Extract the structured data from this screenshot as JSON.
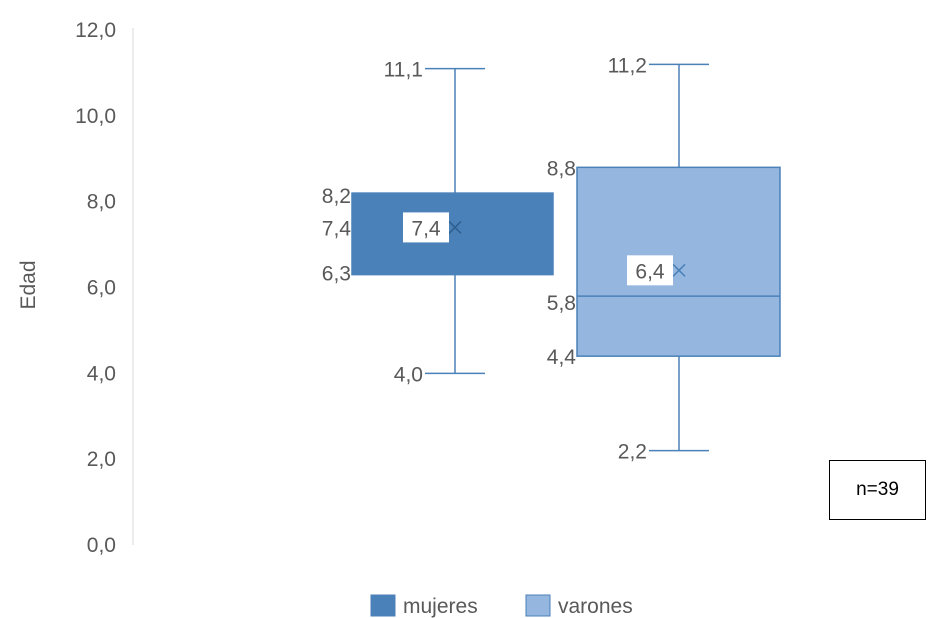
{
  "chart_data": {
    "type": "box",
    "ylabel": "Edad",
    "ylim": [
      0,
      12
    ],
    "yticks": [
      "0,0",
      "2,0",
      "4,0",
      "6,0",
      "8,0",
      "10,0",
      "12,0"
    ],
    "grid": false,
    "legend_position": "bottom",
    "series": [
      {
        "name": "mujeres",
        "color": "#4a81b8",
        "min": 4.0,
        "q1": 6.3,
        "median": 7.4,
        "q3": 8.2,
        "max": 11.1,
        "mean": 7.4,
        "labels": {
          "min": "4,0",
          "q1": "6,3",
          "median": "7,4",
          "q3": "8,2",
          "max": "11,1",
          "mean": "7,4"
        }
      },
      {
        "name": "varones",
        "color": "#95b6df",
        "min": 2.2,
        "q1": 4.4,
        "median": 5.8,
        "q3": 8.8,
        "max": 11.2,
        "mean": 6.4,
        "labels": {
          "min": "2,2",
          "q1": "4,4",
          "median": "5,8",
          "q3": "8,8",
          "max": "11,2",
          "mean": "6,4"
        }
      }
    ]
  },
  "note": "n=39"
}
